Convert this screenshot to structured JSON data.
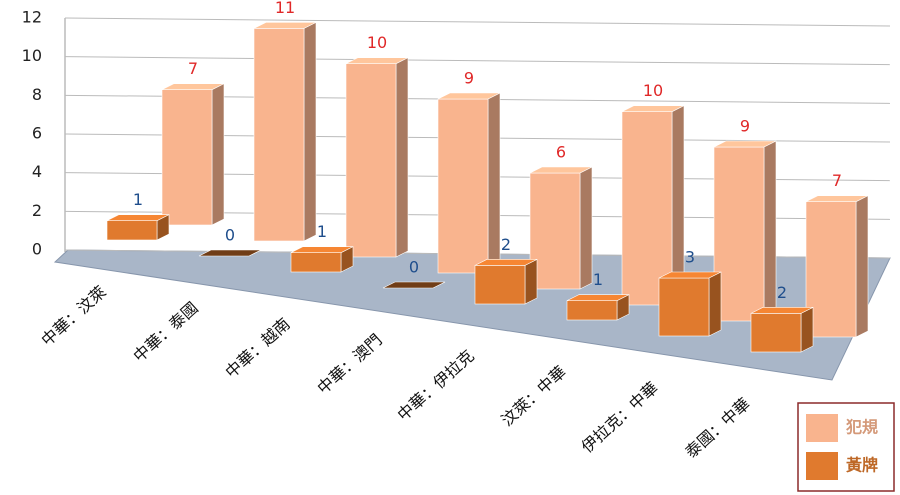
{
  "chart_data": {
    "type": "bar3d",
    "categories": [
      "中華：汶萊",
      "中華：泰國",
      "中華：越南",
      "中華：澳門",
      "中華：伊拉克",
      "汶萊：中華",
      "伊拉克：中華",
      "泰國：中華"
    ],
    "series": [
      {
        "name": "犯規",
        "color": "#f9b48e",
        "label_color": "#e02828",
        "values": [
          7,
          11,
          10,
          9,
          6,
          10,
          9,
          7
        ]
      },
      {
        "name": "黃牌",
        "color": "#e07a2e",
        "label_color": "#1f4e8c",
        "values": [
          1,
          0,
          1,
          0,
          2,
          1,
          3,
          2
        ]
      }
    ],
    "ylim": [
      0,
      12
    ],
    "yticks": [
      0,
      2,
      4,
      6,
      8,
      10,
      12
    ],
    "grid": true
  }
}
